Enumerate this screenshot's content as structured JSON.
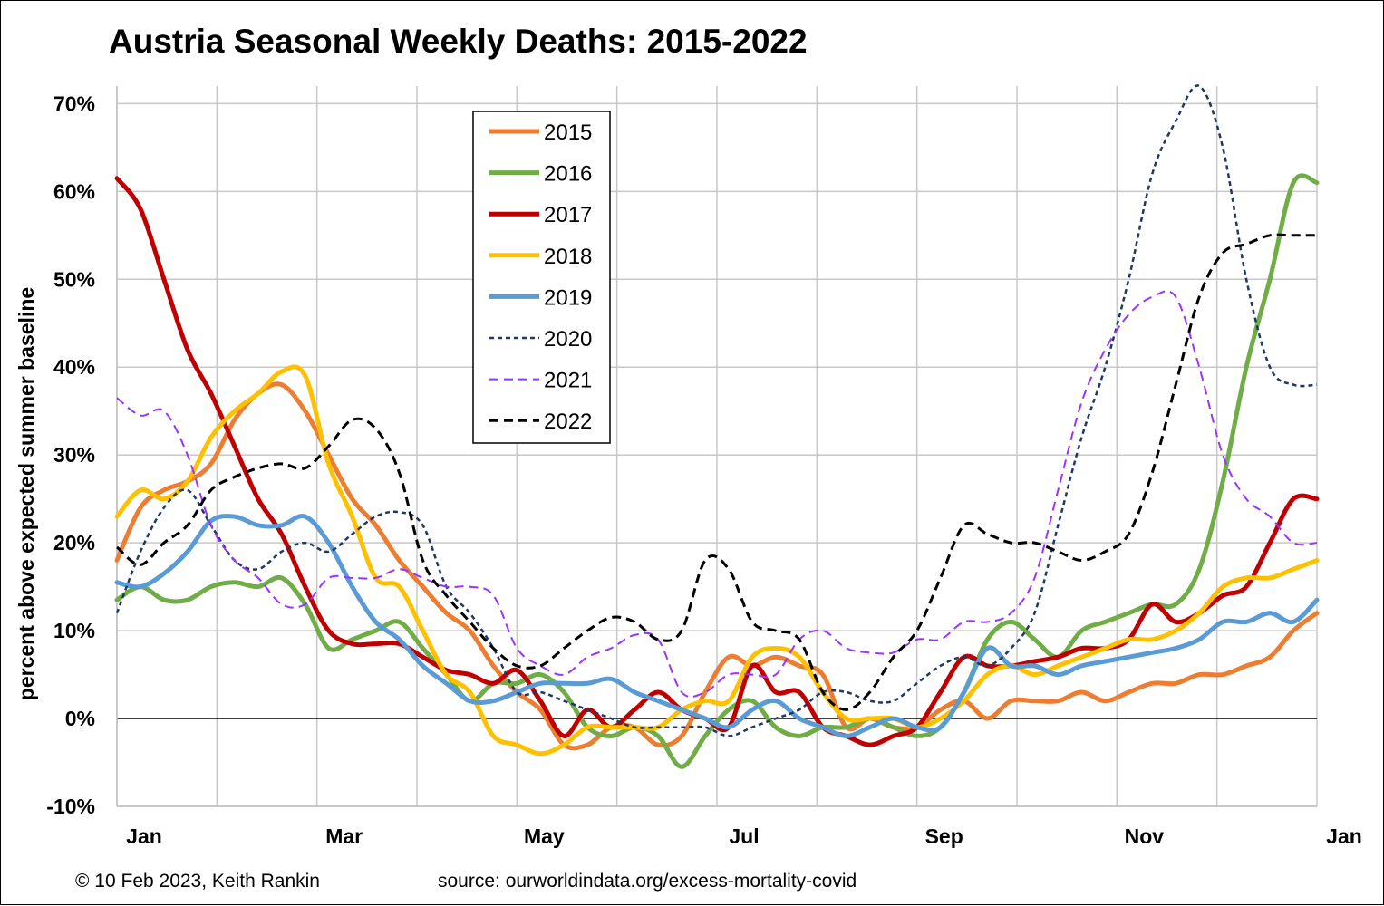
{
  "chart_data": {
    "type": "line",
    "title": "Austria Seasonal Weekly Deaths: 2015-2022",
    "ylabel": "percent above expected summer baseline",
    "xlabel": "",
    "x_tick_labels": [
      "Jan",
      "Mar",
      "May",
      "Jul",
      "Sep",
      "Nov",
      "Jan"
    ],
    "y_tick_labels": [
      "-10%",
      "0%",
      "10%",
      "20%",
      "30%",
      "40%",
      "50%",
      "60%",
      "70%"
    ],
    "ylim": [
      -10,
      72
    ],
    "x_unit": "week of year",
    "xlim": [
      1,
      52
    ],
    "grid": true,
    "legend_position": "top-left-center",
    "footer_left": "© 10 Feb 2023, Keith Rankin",
    "footer_right": "source: ourworldindata.org/excess-mortality-covid",
    "series": [
      {
        "name": "2015",
        "color": "#ED7D31",
        "style": "solid",
        "width": 5,
        "x": [
          1,
          2,
          3,
          4,
          5,
          6,
          7,
          8,
          9,
          10,
          11,
          12,
          13,
          14,
          15,
          16,
          17,
          18,
          19,
          20,
          21,
          22,
          23,
          24,
          25,
          26,
          27,
          28,
          29,
          30,
          31,
          32,
          33,
          34,
          35,
          36,
          37,
          38,
          39,
          40,
          41,
          42,
          43,
          44,
          45,
          46,
          47,
          48,
          49,
          50,
          51,
          52
        ],
        "values": [
          18,
          24,
          26,
          27,
          29,
          34,
          37,
          38,
          35,
          30,
          25,
          22,
          18,
          15,
          12,
          10,
          6,
          3,
          1,
          -3,
          -3,
          -1,
          -1,
          -3,
          -2,
          3,
          7,
          6,
          7,
          6,
          5,
          -1,
          0,
          -1,
          -1,
          1,
          2,
          0,
          2,
          2,
          2,
          3,
          2,
          3,
          4,
          4,
          5,
          5,
          6,
          7,
          10,
          12
        ]
      },
      {
        "name": "2016",
        "color": "#70AD47",
        "style": "solid",
        "width": 5,
        "x": [
          1,
          2,
          3,
          4,
          5,
          6,
          7,
          8,
          9,
          10,
          11,
          12,
          13,
          14,
          15,
          16,
          17,
          18,
          19,
          20,
          21,
          22,
          23,
          24,
          25,
          26,
          27,
          28,
          29,
          30,
          31,
          32,
          33,
          34,
          35,
          36,
          37,
          38,
          39,
          40,
          41,
          42,
          43,
          44,
          45,
          46,
          47,
          48,
          49,
          50,
          51,
          52
        ],
        "values": [
          13.5,
          15,
          13.5,
          13.5,
          15,
          15.5,
          15,
          16,
          13,
          8,
          9,
          10,
          11,
          8,
          5,
          2,
          4,
          4,
          5,
          3,
          -1,
          -2,
          -1,
          -2,
          -5.5,
          -2,
          1,
          2,
          -1,
          -2,
          -1,
          -1,
          0,
          -1,
          -2,
          -1,
          3,
          9,
          11,
          9,
          7,
          10,
          11,
          12,
          13,
          13,
          17,
          27,
          40,
          50,
          61,
          61
        ]
      },
      {
        "name": "2017",
        "color": "#C00000",
        "style": "solid",
        "width": 5,
        "x": [
          1,
          2,
          3,
          4,
          5,
          6,
          7,
          8,
          9,
          10,
          11,
          12,
          13,
          14,
          15,
          16,
          17,
          18,
          19,
          20,
          21,
          22,
          23,
          24,
          25,
          26,
          27,
          28,
          29,
          30,
          31,
          32,
          33,
          34,
          35,
          36,
          37,
          38,
          39,
          40,
          41,
          42,
          43,
          44,
          45,
          46,
          47,
          48,
          49,
          50,
          51,
          52
        ],
        "values": [
          61.5,
          58,
          50,
          42,
          37,
          31,
          25,
          21,
          15,
          10,
          8.5,
          8.5,
          8.5,
          7,
          5.5,
          5,
          4,
          5.5,
          2,
          -2,
          1,
          -1,
          1,
          3,
          1,
          0,
          -1,
          6,
          3,
          3,
          -1,
          -2,
          -3,
          -2,
          -1,
          3,
          7,
          6,
          6,
          6.5,
          7,
          8,
          8,
          9,
          13,
          11,
          12,
          14,
          15,
          20,
          25,
          25
        ]
      },
      {
        "name": "2018",
        "color": "#FFC000",
        "style": "solid",
        "width": 5,
        "x": [
          1,
          2,
          3,
          4,
          5,
          6,
          7,
          8,
          9,
          10,
          11,
          12,
          13,
          14,
          15,
          16,
          17,
          18,
          19,
          20,
          21,
          22,
          23,
          24,
          25,
          26,
          27,
          28,
          29,
          30,
          31,
          32,
          33,
          34,
          35,
          36,
          37,
          38,
          39,
          40,
          41,
          42,
          43,
          44,
          45,
          46,
          47,
          48,
          49,
          50,
          51,
          52
        ],
        "values": [
          23,
          26,
          25,
          27,
          32,
          35,
          37,
          39.5,
          39,
          29,
          23,
          16,
          15,
          10,
          5,
          3,
          -2,
          -3,
          -4,
          -3,
          -1,
          -1,
          -1,
          -1,
          1,
          2,
          2,
          7,
          8,
          7,
          3,
          0,
          0,
          0,
          -1,
          0,
          2,
          5,
          6,
          5,
          6,
          7,
          8,
          9,
          9,
          10,
          12,
          15,
          16,
          16,
          17,
          18
        ]
      },
      {
        "name": "2019",
        "color": "#5B9BD5",
        "style": "solid",
        "width": 5,
        "x": [
          1,
          2,
          3,
          4,
          5,
          6,
          7,
          8,
          9,
          10,
          11,
          12,
          13,
          14,
          15,
          16,
          17,
          18,
          19,
          20,
          21,
          22,
          23,
          24,
          25,
          26,
          27,
          28,
          29,
          30,
          31,
          32,
          33,
          34,
          35,
          36,
          37,
          38,
          39,
          40,
          41,
          42,
          43,
          44,
          45,
          46,
          47,
          48,
          49,
          50,
          51,
          52
        ],
        "values": [
          15.5,
          15,
          16.5,
          19,
          22.5,
          23,
          22,
          22,
          23,
          20,
          15,
          11,
          9,
          6,
          4,
          2,
          2,
          3,
          4,
          4,
          4,
          4.5,
          3,
          2,
          1,
          0,
          -1,
          1,
          2,
          0,
          -1,
          -2,
          -1,
          0,
          -1,
          -1,
          3,
          8,
          6,
          6,
          5,
          6,
          6.5,
          7,
          7.5,
          8,
          9,
          11,
          11,
          12,
          11,
          13.5
        ]
      },
      {
        "name": "2020",
        "color": "#1F3864",
        "style": "short-dash",
        "width": 2.5,
        "x": [
          1,
          2,
          3,
          4,
          5,
          6,
          7,
          8,
          9,
          10,
          11,
          12,
          13,
          14,
          15,
          16,
          17,
          18,
          19,
          20,
          21,
          22,
          23,
          24,
          25,
          26,
          27,
          28,
          29,
          30,
          31,
          32,
          33,
          34,
          35,
          36,
          37,
          38,
          39,
          40,
          41,
          42,
          43,
          44,
          45,
          46,
          47,
          48,
          49,
          50,
          51,
          52
        ],
        "values": [
          12,
          19,
          24,
          26,
          22,
          18,
          17,
          19,
          20,
          19,
          21,
          23,
          23.5,
          22,
          15,
          12,
          8,
          3,
          3,
          2,
          1,
          0,
          -1,
          -1,
          -1,
          -1,
          -2,
          -1,
          0,
          1,
          3,
          3,
          2,
          2,
          4,
          6,
          7,
          6,
          8,
          12,
          22,
          32,
          40,
          50,
          62,
          68,
          72,
          65,
          50,
          40,
          38,
          38
        ]
      },
      {
        "name": "2021",
        "color": "#9933FF",
        "style": "dash",
        "width": 2,
        "x": [
          1,
          2,
          3,
          4,
          5,
          6,
          7,
          8,
          9,
          10,
          11,
          12,
          13,
          14,
          15,
          16,
          17,
          18,
          19,
          20,
          21,
          22,
          23,
          24,
          25,
          26,
          27,
          28,
          29,
          30,
          31,
          32,
          33,
          34,
          35,
          36,
          37,
          38,
          39,
          40,
          41,
          42,
          43,
          44,
          45,
          46,
          47,
          48,
          49,
          50,
          51,
          52
        ],
        "values": [
          36.5,
          34.5,
          35,
          30,
          22,
          18,
          16,
          13,
          13,
          16,
          16,
          16,
          17,
          16,
          15,
          15,
          14,
          8,
          6,
          5,
          7,
          8,
          9.5,
          9,
          3,
          3,
          5,
          5,
          5,
          9,
          10,
          8,
          7.5,
          7.5,
          9,
          9,
          11,
          11,
          12,
          16,
          26,
          36,
          42,
          46,
          48,
          48,
          40,
          30,
          25,
          23,
          20,
          20
        ]
      },
      {
        "name": "2022",
        "color": "#000000",
        "style": "dash",
        "width": 3,
        "x": [
          1,
          2,
          3,
          4,
          5,
          6,
          7,
          8,
          9,
          10,
          11,
          12,
          13,
          14,
          15,
          16,
          17,
          18,
          19,
          20,
          21,
          22,
          23,
          24,
          25,
          26,
          27,
          28,
          29,
          30,
          31,
          32,
          33,
          34,
          35,
          36,
          37,
          38,
          39,
          40,
          41,
          42,
          43,
          44,
          45,
          46,
          47,
          48,
          49,
          50,
          51,
          52
        ],
        "values": [
          19.5,
          17.5,
          20,
          22,
          26,
          27.5,
          28.5,
          29,
          28.5,
          31,
          34,
          33,
          28,
          18,
          14,
          11,
          8,
          6,
          6,
          8,
          10,
          11.5,
          11,
          9,
          10,
          18,
          17,
          11,
          10,
          9,
          3,
          1,
          3,
          7,
          10,
          16,
          22,
          21,
          20,
          20,
          19,
          18,
          19,
          21,
          28,
          38,
          48,
          53,
          54,
          55,
          55,
          55
        ]
      }
    ]
  }
}
